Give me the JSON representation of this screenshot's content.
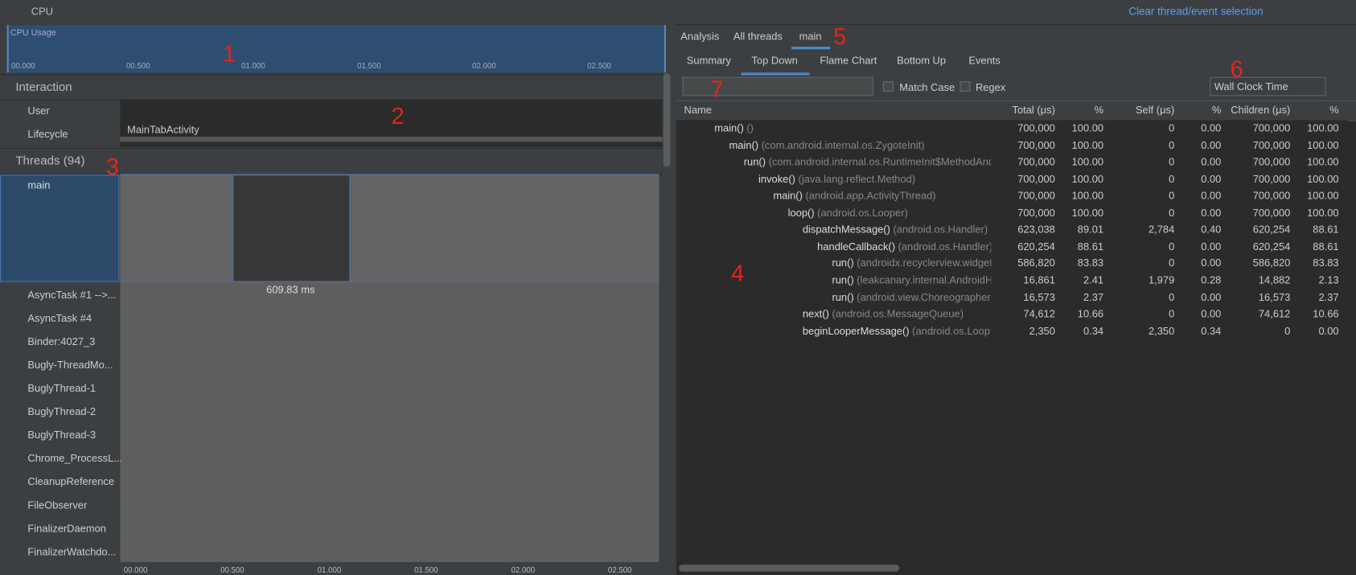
{
  "toolbar": {
    "profiler": "CPU",
    "clear": "Clear thread/event selection"
  },
  "cpu_usage": {
    "label": "CPU Usage",
    "ticks": [
      "00.000",
      "00.500",
      "01.000",
      "01.500",
      "02.000",
      "02.500"
    ]
  },
  "interaction": {
    "title": "Interaction",
    "rows": [
      "User",
      "Lifecycle"
    ],
    "activity": "MainTabActivity"
  },
  "threads": {
    "title": "Threads (94)",
    "selected": "main",
    "selection": "609.83 ms",
    "list": [
      "AsyncTask #1 -->...",
      "AsyncTask #4",
      "Binder:4027_3",
      "Bugly-ThreadMo...",
      "BuglyThread-1",
      "BuglyThread-2",
      "BuglyThread-3",
      "Chrome_ProcessL...",
      "CleanupReference",
      "FileObserver",
      "FinalizerDaemon",
      "FinalizerWatchdo..."
    ]
  },
  "analysis": {
    "tabs": [
      "Analysis",
      "All threads",
      "main"
    ],
    "active_tab": 2,
    "subtabs": [
      "Summary",
      "Top Down",
      "Flame Chart",
      "Bottom Up",
      "Events"
    ],
    "active_subtab": 1,
    "match_case": "Match Case",
    "regex": "Regex",
    "clock": "Wall Clock Time",
    "columns": [
      "Name",
      "Total (μs)",
      "%",
      "Self (μs)",
      "%",
      "Children (μs)",
      "%"
    ],
    "rows": [
      {
        "depth": 0,
        "open": true,
        "method": "main()",
        "class": "()",
        "total": "700,000",
        "total_pct": "100.00",
        "self": "0",
        "self_pct": "0.00",
        "children": "700,000",
        "children_pct": "100.00"
      },
      {
        "depth": 1,
        "open": true,
        "method": "main()",
        "class": "(com.android.internal.os.ZygoteInit)",
        "total": "700,000",
        "total_pct": "100.00",
        "self": "0",
        "self_pct": "0.00",
        "children": "700,000",
        "children_pct": "100.00"
      },
      {
        "depth": 2,
        "open": true,
        "method": "run()",
        "class": "(com.android.internal.os.RuntimeInit$MethodAnd",
        "total": "700,000",
        "total_pct": "100.00",
        "self": "0",
        "self_pct": "0.00",
        "children": "700,000",
        "children_pct": "100.00"
      },
      {
        "depth": 3,
        "open": true,
        "method": "invoke()",
        "class": "(java.lang.reflect.Method)",
        "total": "700,000",
        "total_pct": "100.00",
        "self": "0",
        "self_pct": "0.00",
        "children": "700,000",
        "children_pct": "100.00"
      },
      {
        "depth": 4,
        "open": true,
        "method": "main()",
        "class": "(android.app.ActivityThread)",
        "total": "700,000",
        "total_pct": "100.00",
        "self": "0",
        "self_pct": "0.00",
        "children": "700,000",
        "children_pct": "100.00"
      },
      {
        "depth": 5,
        "open": true,
        "method": "loop()",
        "class": "(android.os.Looper)",
        "total": "700,000",
        "total_pct": "100.00",
        "self": "0",
        "self_pct": "0.00",
        "children": "700,000",
        "children_pct": "100.00"
      },
      {
        "depth": 6,
        "open": true,
        "method": "dispatchMessage()",
        "class": "(android.os.Handler)",
        "total": "623,038",
        "total_pct": "89.01",
        "self": "2,784",
        "self_pct": "0.40",
        "children": "620,254",
        "children_pct": "88.61"
      },
      {
        "depth": 7,
        "open": true,
        "method": "handleCallback()",
        "class": "(android.os.Handler)",
        "total": "620,254",
        "total_pct": "88.61",
        "self": "0",
        "self_pct": "0.00",
        "children": "620,254",
        "children_pct": "88.61"
      },
      {
        "depth": 8,
        "open": false,
        "method": "run()",
        "class": "(androidx.recyclerview.widget",
        "total": "586,820",
        "total_pct": "83.83",
        "self": "0",
        "self_pct": "0.00",
        "children": "586,820",
        "children_pct": "83.83"
      },
      {
        "depth": 8,
        "open": false,
        "method": "run()",
        "class": "(leakcanary.internal.AndroidH",
        "total": "16,861",
        "total_pct": "2.41",
        "self": "1,979",
        "self_pct": "0.28",
        "children": "14,882",
        "children_pct": "2.13"
      },
      {
        "depth": 8,
        "open": false,
        "method": "run()",
        "class": "(android.view.Choreographer",
        "total": "16,573",
        "total_pct": "2.37",
        "self": "0",
        "self_pct": "0.00",
        "children": "16,573",
        "children_pct": "2.37"
      },
      {
        "depth": 6,
        "open": false,
        "method": "next()",
        "class": "(android.os.MessageQueue)",
        "total": "74,612",
        "total_pct": "10.66",
        "self": "0",
        "self_pct": "0.00",
        "children": "74,612",
        "children_pct": "10.66"
      },
      {
        "depth": 6,
        "open": null,
        "method": "beginLooperMessage()",
        "class": "(android.os.Loop",
        "total": "2,350",
        "total_pct": "0.34",
        "self": "2,350",
        "self_pct": "0.34",
        "children": "0",
        "children_pct": "0.00"
      }
    ]
  },
  "annotations": [
    "1",
    "2",
    "3",
    "4",
    "5",
    "6",
    "7"
  ]
}
